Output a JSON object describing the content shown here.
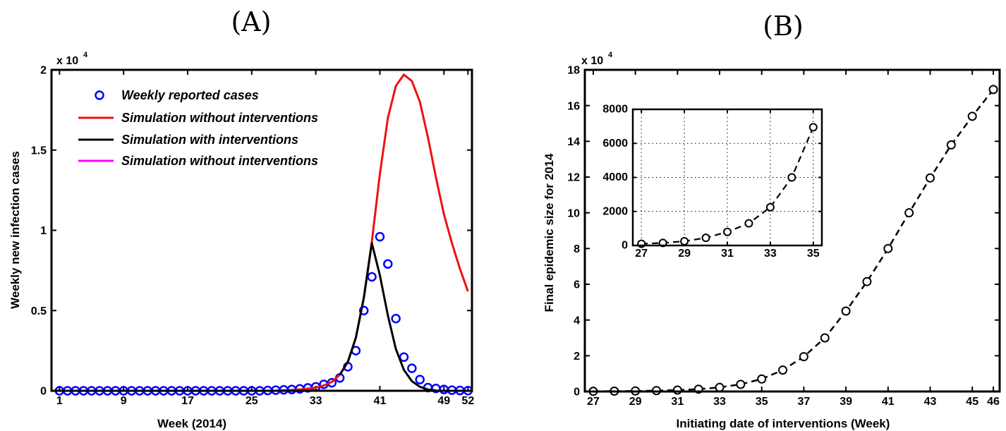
{
  "chart_data": [
    {
      "type": "line",
      "panel_label": "(A)",
      "xlabel": "Week (2014)",
      "ylabel": "Weekly new infection cases",
      "y_scale_label": "x 10",
      "y_scale_exponent": "4",
      "xlim": [
        0,
        52.5
      ],
      "ylim": [
        0,
        2
      ],
      "x_ticks": [
        1,
        9,
        17,
        25,
        33,
        41,
        49,
        52
      ],
      "y_ticks": [
        0,
        0.5,
        1,
        1.5,
        2
      ],
      "y_tick_labels": [
        "0",
        "0.5",
        "1",
        "1.5",
        "2"
      ],
      "grid": false,
      "legend_position": "top-left",
      "series": [
        {
          "name": "Weekly reported cases",
          "style": "circles",
          "color": "#0000ff",
          "x": [
            1,
            2,
            3,
            4,
            5,
            6,
            7,
            8,
            9,
            10,
            11,
            12,
            13,
            14,
            15,
            16,
            17,
            18,
            19,
            20,
            21,
            22,
            23,
            24,
            25,
            26,
            27,
            28,
            29,
            30,
            31,
            32,
            33,
            34,
            35,
            36,
            37,
            38,
            39,
            40,
            41,
            42,
            43,
            44,
            45,
            46,
            47,
            48,
            49,
            50,
            51,
            52
          ],
          "values": [
            0,
            0,
            0,
            0,
            0,
            0,
            0,
            0,
            0,
            0,
            0,
            0,
            0,
            0,
            0,
            0,
            0,
            0,
            0,
            0,
            0,
            0,
            0,
            0,
            0,
            0,
            0.002,
            0.004,
            0.006,
            0.008,
            0.012,
            0.018,
            0.025,
            0.04,
            0.05,
            0.08,
            0.15,
            0.25,
            0.5,
            0.71,
            0.96,
            0.79,
            0.45,
            0.21,
            0.14,
            0.07,
            0.02,
            0.015,
            0.008,
            0.004,
            0.002,
            0.001
          ]
        },
        {
          "name": "Simulation without interventions",
          "style": "line",
          "color": "#ee1111",
          "x": [
            28,
            30,
            31,
            32,
            33,
            34,
            35,
            36,
            37,
            38,
            39,
            40,
            41,
            42,
            43,
            44,
            45,
            46,
            47,
            48,
            49,
            50,
            51,
            52
          ],
          "values": [
            0.001,
            0.005,
            0.008,
            0.013,
            0.02,
            0.033,
            0.055,
            0.1,
            0.18,
            0.33,
            0.58,
            0.93,
            1.35,
            1.7,
            1.9,
            1.97,
            1.93,
            1.8,
            1.58,
            1.33,
            1.1,
            0.92,
            0.76,
            0.62
          ]
        },
        {
          "name": "Simulation with interventions",
          "style": "line",
          "color": "#000000",
          "x": [
            36,
            37,
            38,
            39,
            40,
            41,
            42,
            43,
            44,
            45,
            46,
            47,
            48
          ],
          "values": [
            0.1,
            0.18,
            0.33,
            0.58,
            0.92,
            0.72,
            0.47,
            0.26,
            0.13,
            0.06,
            0.025,
            0.008,
            0.002
          ]
        },
        {
          "name": "Simulation without interventions",
          "style": "line",
          "color": "#ff00ff",
          "legend_only": true,
          "x": [],
          "values": []
        }
      ]
    },
    {
      "type": "line",
      "panel_label": "(B)",
      "xlabel": "Initiating date of interventions (Week)",
      "ylabel": "Final epidemic size for 2014",
      "y_scale_label": "x 10",
      "y_scale_exponent": "4",
      "xlim": [
        26.6,
        46.3
      ],
      "ylim": [
        0,
        18
      ],
      "x_ticks": [
        27,
        29,
        31,
        33,
        35,
        37,
        39,
        41,
        43,
        45,
        46
      ],
      "y_ticks": [
        0,
        2,
        4,
        6,
        8,
        10,
        12,
        14,
        16,
        18
      ],
      "y_tick_labels": [
        "0",
        "2",
        "4",
        "6",
        "8",
        "10",
        "12",
        "14",
        "16",
        "18"
      ],
      "grid": false,
      "series": [
        {
          "style": "dashed-circles",
          "color": "#000000",
          "x": [
            27,
            28,
            29,
            30,
            31,
            32,
            33,
            34,
            35,
            36,
            37,
            38,
            39,
            40,
            41,
            42,
            43,
            44,
            45,
            46
          ],
          "values": [
            0.01,
            0.02,
            0.03,
            0.05,
            0.08,
            0.13,
            0.23,
            0.4,
            0.7,
            1.2,
            1.95,
            3.0,
            4.5,
            6.15,
            8.0,
            10.0,
            11.95,
            13.8,
            15.4,
            16.9
          ]
        }
      ],
      "inset": {
        "xlim": [
          26.6,
          35.4
        ],
        "ylim": [
          0,
          8000
        ],
        "x_ticks": [
          27,
          29,
          31,
          33,
          35
        ],
        "y_ticks": [
          0,
          2000,
          4000,
          6000,
          8000
        ],
        "y_tick_labels": [
          "0",
          "2000",
          "4000",
          "6000",
          "8000"
        ],
        "x_grid": [
          27,
          29,
          31,
          33,
          35
        ],
        "grid": true,
        "series": [
          {
            "style": "dashed-circles",
            "color": "#000000",
            "x": [
              27,
              28,
              29,
              30,
              31,
              32,
              33,
              34,
              35
            ],
            "values": [
              100,
              150,
              250,
              450,
              800,
              1300,
              2250,
              4000,
              6950
            ]
          }
        ]
      }
    }
  ]
}
